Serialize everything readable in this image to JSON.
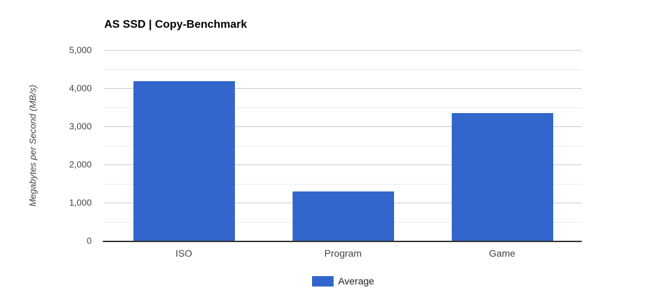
{
  "chart_data": {
    "type": "bar",
    "title": "AS SSD | Copy-Benchmark",
    "categories": [
      "ISO",
      "Program",
      "Game"
    ],
    "series": [
      {
        "name": "Average",
        "values": [
          4180,
          1290,
          3350
        ]
      }
    ],
    "xlabel": "",
    "ylabel": "Megabytes per Second (MB/s)",
    "ylim": [
      0,
      5000
    ],
    "ytick_step": 1000,
    "minor_ytick_step": 500,
    "ytick_labels": [
      "0",
      "1,000",
      "2,000",
      "3,000",
      "4,000",
      "5,000"
    ],
    "grid": true,
    "legend_position": "bottom",
    "colors": {
      "bar": "#3366cc",
      "major_gridline": "#cccccc",
      "minor_gridline": "#ebebeb",
      "axis_line": "#333333",
      "title_text": "#000000",
      "axis_text": "#444444",
      "legend_text": "#222222"
    }
  }
}
